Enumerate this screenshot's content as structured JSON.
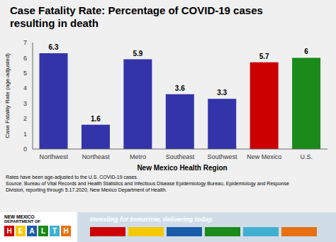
{
  "chart_data": {
    "type": "bar",
    "title": "Case Fatality Rate: Percentage of COVID-19 cases\nresulting in death",
    "categories": [
      "Northwest",
      "Northeast",
      "Metro",
      "Southeast",
      "Southwest",
      "New Mexico",
      "U.S."
    ],
    "values": [
      6.3,
      1.6,
      5.9,
      3.6,
      3.3,
      5.7,
      6.0
    ],
    "colors": [
      "#3333aa",
      "#3333aa",
      "#3333aa",
      "#3333aa",
      "#3333aa",
      "#cc0000",
      "#1a8a1a"
    ],
    "xlabel": "New Mexico Health Region",
    "ylabel": "Case Fatality Rate (age-adjusted)",
    "ylim": [
      0,
      7
    ],
    "yticks": [
      0,
      1,
      2,
      3,
      4,
      5,
      6,
      7
    ],
    "grid": false,
    "data_labels": true,
    "annotations": [
      "Rates have been age-adjusted to the U.S. COVID-19 cases.",
      "Source: Bureau of Vital Records and Health Statistics and Infectious Disease Epidemiology Bureau, Epidemiology and Response",
      "Division, reporting through 5.17.2020, New Mexico Department of Health."
    ],
    "banner_text": "Investing for tomorrow, delivering today.",
    "logo_text": [
      "NEW MEXICO",
      "DEPARTMENT OF"
    ],
    "logo_letters": [
      "H",
      "E",
      "A",
      "L",
      "T",
      "H"
    ]
  }
}
